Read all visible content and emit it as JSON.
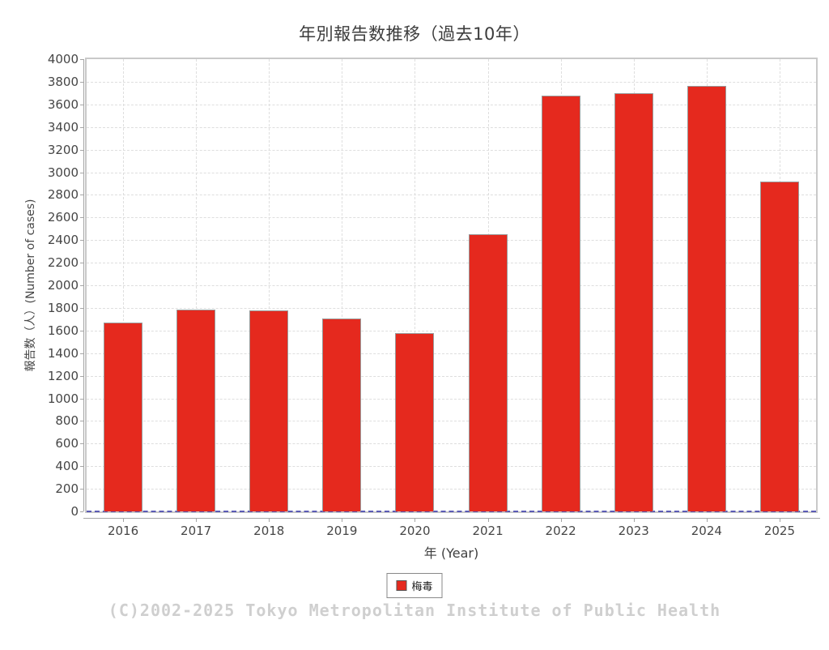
{
  "title": "年別報告数推移（過去10年）",
  "chart_data": {
    "type": "bar",
    "title": "年別報告数推移（過去10年）",
    "categories": [
      "2016",
      "2017",
      "2018",
      "2019",
      "2020",
      "2021",
      "2022",
      "2023",
      "2024",
      "2025"
    ],
    "series": [
      {
        "name": "梅毒",
        "color": "#e5291e",
        "values": [
          1673,
          1788,
          1777,
          1705,
          1580,
          2452,
          3677,
          3701,
          3766,
          2920
        ]
      }
    ],
    "xlabel": "年 (Year)",
    "ylabel": "報告数（人）(Number of cases)",
    "ylim": [
      0,
      4000
    ],
    "ytick_step": 200,
    "grid": "dashed horizontal and vertical",
    "legend_position": "bottom-center"
  },
  "legend": {
    "items": [
      {
        "label": "梅毒",
        "color": "#e5291e"
      }
    ]
  },
  "footer": {
    "copyright": "(C)2002-2025 Tokyo Metropolitan Institute of Public Health"
  },
  "colors": {
    "bar_fill": "#e5291e",
    "bar_outline": "#9a9a9a",
    "gridline": "#dedede",
    "zero_line": "#5a5ab4",
    "plot_border": "#c9c9c9",
    "axis_line": "#a5a5a5",
    "tick_text": "#464646",
    "title_text": "#3c3c3c",
    "copyright_text": "#cfcfcf"
  }
}
